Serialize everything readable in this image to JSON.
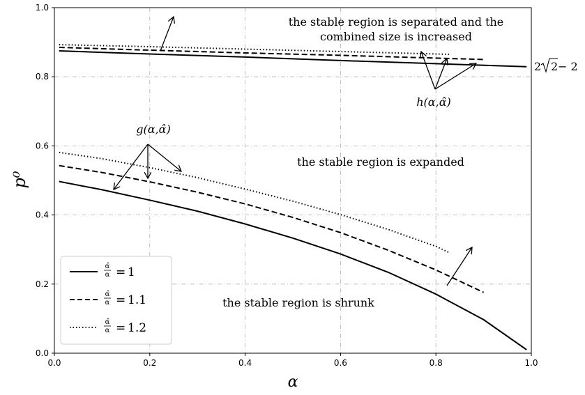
{
  "chart_data": {
    "type": "line",
    "title": "",
    "xlabel": "α",
    "ylabel": "p⁰",
    "xlim": [
      0.0,
      1.0
    ],
    "ylim": [
      0.0,
      1.0
    ],
    "grid": true,
    "legend_position": "lower-left",
    "x_ticks": [
      "0.0",
      "0.2",
      "0.4",
      "0.6",
      "0.8",
      "1.0"
    ],
    "y_ticks": [
      "0.0",
      "0.2",
      "0.4",
      "0.6",
      "0.8",
      "1.0"
    ],
    "series": [
      {
        "name": "α̂/α = 1",
        "legend_ratio": "1",
        "style": "solid",
        "group": "lower",
        "x": [
          0.01,
          0.1,
          0.2,
          0.3,
          0.4,
          0.5,
          0.6,
          0.7,
          0.8,
          0.9,
          0.99
        ],
        "y": [
          0.497,
          0.473,
          0.443,
          0.411,
          0.374,
          0.333,
          0.287,
          0.234,
          0.171,
          0.097,
          0.01
        ]
      },
      {
        "name": "α̂/α = 1.1",
        "legend_ratio": "1.1",
        "style": "dashed",
        "group": "lower",
        "x": [
          0.01,
          0.1,
          0.2,
          0.3,
          0.4,
          0.5,
          0.6,
          0.7,
          0.8,
          0.9
        ],
        "y": [
          0.543,
          0.523,
          0.496,
          0.466,
          0.432,
          0.393,
          0.349,
          0.298,
          0.241,
          0.176
        ]
      },
      {
        "name": "α̂/α = 1.2",
        "legend_ratio": "1.2",
        "style": "dotted",
        "group": "lower",
        "x": [
          0.01,
          0.1,
          0.2,
          0.3,
          0.4,
          0.5,
          0.6,
          0.7,
          0.8,
          0.83
        ],
        "y": [
          0.581,
          0.563,
          0.537,
          0.508,
          0.475,
          0.44,
          0.401,
          0.358,
          0.309,
          0.29
        ]
      },
      {
        "legend_ratio": "1",
        "style": "solid",
        "group": "upper",
        "x": [
          0.01,
          0.2,
          0.4,
          0.6,
          0.8,
          0.99
        ],
        "y": [
          0.875,
          0.866,
          0.857,
          0.847,
          0.838,
          0.829
        ]
      },
      {
        "legend_ratio": "1.1",
        "style": "dashed",
        "group": "upper",
        "x": [
          0.01,
          0.2,
          0.4,
          0.6,
          0.8,
          0.9
        ],
        "y": [
          0.885,
          0.877,
          0.869,
          0.862,
          0.854,
          0.85
        ]
      },
      {
        "legend_ratio": "1.2",
        "style": "dotted",
        "group": "upper",
        "x": [
          0.01,
          0.2,
          0.4,
          0.6,
          0.83
        ],
        "y": [
          0.893,
          0.887,
          0.88,
          0.873,
          0.865
        ]
      }
    ],
    "annotations": {
      "top_line1": "the stable region is separated and the",
      "top_line2": "combined size is increased",
      "middle": "the  stable region is expanded",
      "bottom": "the  stable region is shrunk",
      "h_label": "h(α,α̂)",
      "g_label": "g(α,α̂)",
      "right_value_prefix": "2",
      "right_value_radicand": "2",
      "right_value_suffix": " − 2"
    },
    "legend": {
      "ratio_numerator": "α̂",
      "ratio_denominator": "α",
      "equals": "="
    }
  },
  "colors": {
    "line": "#000000",
    "grid": "#b0b0b0",
    "background": "#ffffff"
  }
}
